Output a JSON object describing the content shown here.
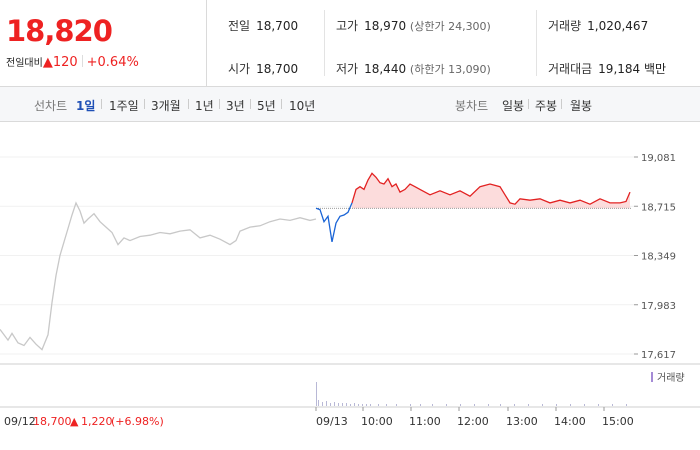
{
  "quote": {
    "price": "18,820",
    "change_label": "전일대비",
    "change_arrow": "▲",
    "change_value": "120",
    "change_pct": "+0.64%",
    "prev_close": {
      "label": "전일",
      "value": "18,700"
    },
    "open": {
      "label": "시가",
      "value": "18,700"
    },
    "high": {
      "label": "고가",
      "value": "18,970",
      "limit": "(상한가 24,300)"
    },
    "low": {
      "label": "저가",
      "value": "18,440",
      "limit": "(하한가 13,090)"
    },
    "volume": {
      "label": "거래량",
      "value": "1,020,467"
    },
    "amount": {
      "label": "거래대금",
      "value": "19,184",
      "unit": "백만"
    }
  },
  "toolbar": {
    "line_label": "선차트",
    "ranges": [
      "1일",
      "1주일",
      "3개월",
      "1년",
      "3년",
      "5년",
      "10년"
    ],
    "active_range": "1일",
    "candle_label": "봉차트",
    "candles": [
      "일봉",
      "주봉",
      "월봉"
    ]
  },
  "colors": {
    "up": "#e22222",
    "down": "#1a64d6",
    "prev": "#c8c8c8",
    "accent": "#1e4fb6"
  },
  "chart_data": {
    "type": "line",
    "y_ticks": [
      "19,081",
      "18,715",
      "18,349",
      "17,983",
      "17,617"
    ],
    "ylim": [
      17617,
      19081
    ],
    "baseline": 18700,
    "volume_legend": "거래량",
    "x_labels": [
      "09/12",
      "09/13",
      "10:00",
      "11:00",
      "12:00",
      "13:00",
      "14:00",
      "15:00"
    ],
    "prev_day_note": {
      "date": "09/12",
      "price": "18,700",
      "arrow": "▲",
      "change": "1,220",
      "pct": "(+6.98%)"
    },
    "prev_day_series": [
      [
        0,
        17800
      ],
      [
        8,
        17720
      ],
      [
        12,
        17770
      ],
      [
        18,
        17700
      ],
      [
        24,
        17680
      ],
      [
        30,
        17740
      ],
      [
        36,
        17690
      ],
      [
        42,
        17650
      ],
      [
        48,
        17760
      ],
      [
        52,
        18000
      ],
      [
        56,
        18200
      ],
      [
        60,
        18350
      ],
      [
        64,
        18450
      ],
      [
        68,
        18550
      ],
      [
        72,
        18650
      ],
      [
        76,
        18740
      ],
      [
        80,
        18680
      ],
      [
        84,
        18590
      ],
      [
        88,
        18620
      ],
      [
        94,
        18660
      ],
      [
        100,
        18600
      ],
      [
        106,
        18560
      ],
      [
        112,
        18520
      ],
      [
        118,
        18430
      ],
      [
        124,
        18480
      ],
      [
        130,
        18460
      ],
      [
        140,
        18490
      ],
      [
        150,
        18500
      ],
      [
        160,
        18520
      ],
      [
        170,
        18510
      ],
      [
        180,
        18530
      ],
      [
        190,
        18540
      ],
      [
        200,
        18480
      ],
      [
        210,
        18500
      ],
      [
        220,
        18470
      ],
      [
        230,
        18430
      ],
      [
        236,
        18460
      ],
      [
        240,
        18530
      ],
      [
        250,
        18560
      ],
      [
        260,
        18570
      ],
      [
        270,
        18600
      ],
      [
        280,
        18620
      ],
      [
        290,
        18610
      ],
      [
        300,
        18630
      ],
      [
        310,
        18610
      ],
      [
        316,
        18620
      ]
    ],
    "today_series": [
      [
        316,
        18700
      ],
      [
        320,
        18690
      ],
      [
        324,
        18600
      ],
      [
        328,
        18640
      ],
      [
        332,
        18450
      ],
      [
        336,
        18590
      ],
      [
        340,
        18640
      ],
      [
        344,
        18650
      ],
      [
        348,
        18670
      ],
      [
        352,
        18740
      ],
      [
        356,
        18840
      ],
      [
        360,
        18860
      ],
      [
        364,
        18840
      ],
      [
        368,
        18910
      ],
      [
        372,
        18960
      ],
      [
        376,
        18930
      ],
      [
        380,
        18890
      ],
      [
        384,
        18880
      ],
      [
        388,
        18920
      ],
      [
        392,
        18860
      ],
      [
        396,
        18880
      ],
      [
        400,
        18820
      ],
      [
        405,
        18840
      ],
      [
        410,
        18880
      ],
      [
        415,
        18860
      ],
      [
        420,
        18840
      ],
      [
        430,
        18800
      ],
      [
        440,
        18830
      ],
      [
        450,
        18800
      ],
      [
        460,
        18830
      ],
      [
        470,
        18790
      ],
      [
        480,
        18860
      ],
      [
        490,
        18880
      ],
      [
        500,
        18860
      ],
      [
        505,
        18800
      ],
      [
        510,
        18740
      ],
      [
        515,
        18730
      ],
      [
        520,
        18770
      ],
      [
        530,
        18760
      ],
      [
        540,
        18770
      ],
      [
        550,
        18740
      ],
      [
        560,
        18760
      ],
      [
        570,
        18740
      ],
      [
        580,
        18760
      ],
      [
        590,
        18730
      ],
      [
        600,
        18770
      ],
      [
        610,
        18740
      ],
      [
        620,
        18740
      ],
      [
        626,
        18750
      ],
      [
        630,
        18820
      ]
    ],
    "volume_bars": [
      [
        316,
        24
      ],
      [
        318,
        6
      ],
      [
        322,
        4
      ],
      [
        326,
        5
      ],
      [
        330,
        3
      ],
      [
        334,
        4
      ],
      [
        338,
        3
      ],
      [
        342,
        3
      ],
      [
        346,
        3
      ],
      [
        350,
        2
      ],
      [
        354,
        3
      ],
      [
        358,
        2
      ],
      [
        362,
        2
      ],
      [
        366,
        2
      ],
      [
        370,
        2
      ],
      [
        378,
        2
      ],
      [
        386,
        2
      ],
      [
        396,
        2
      ],
      [
        410,
        2
      ],
      [
        420,
        2
      ],
      [
        432,
        2
      ],
      [
        446,
        2
      ],
      [
        460,
        2
      ],
      [
        474,
        2
      ],
      [
        488,
        2
      ],
      [
        500,
        2
      ],
      [
        514,
        2
      ],
      [
        528,
        2
      ],
      [
        542,
        2
      ],
      [
        556,
        2
      ],
      [
        570,
        2
      ],
      [
        584,
        2
      ],
      [
        598,
        2
      ],
      [
        612,
        2
      ],
      [
        626,
        2
      ]
    ]
  }
}
